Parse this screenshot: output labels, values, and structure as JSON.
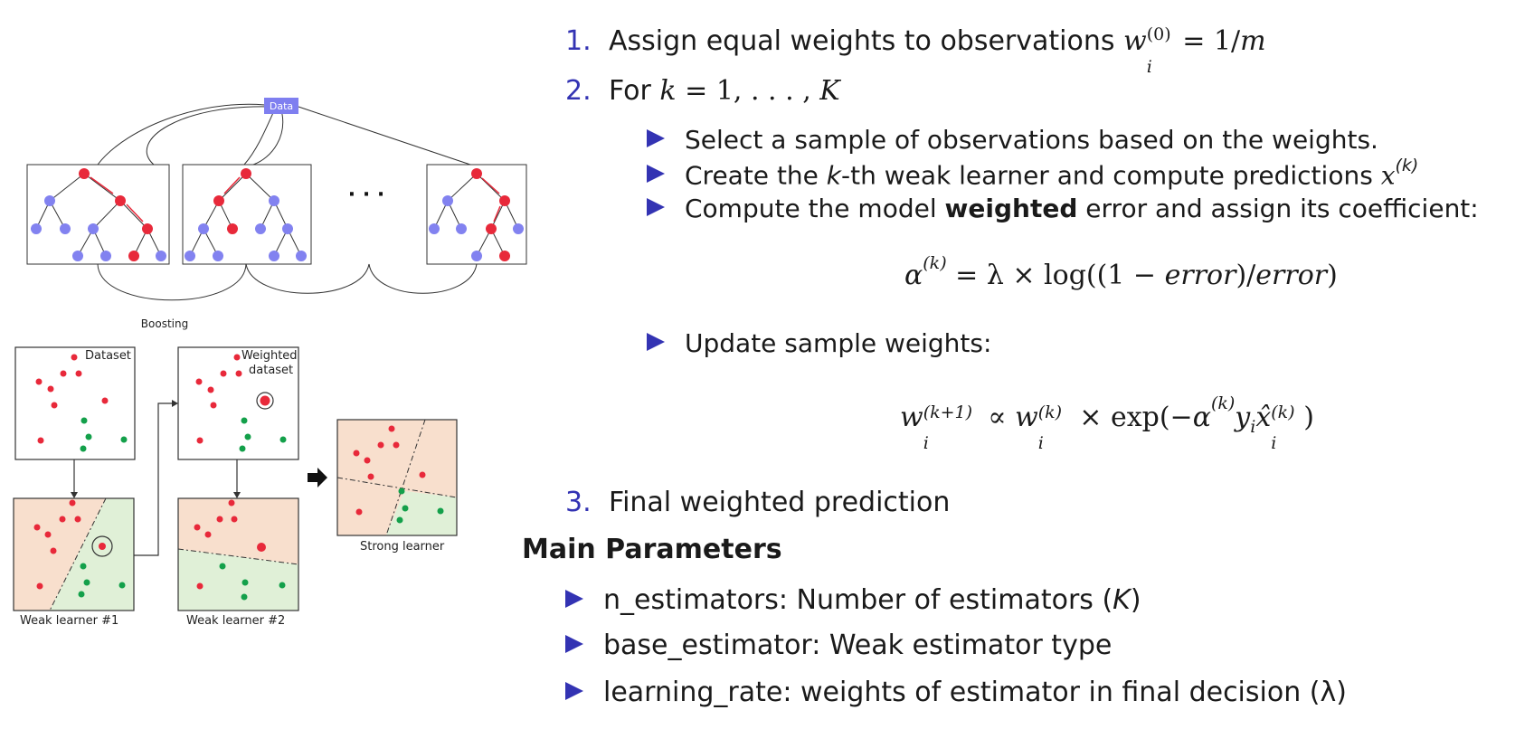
{
  "figure": {
    "data_label": "Data",
    "boosting_label": "Boosting",
    "dataset_label": "Dataset",
    "weighted_dataset_line1": "Weighted",
    "weighted_dataset_line2": "dataset",
    "weak_learner_1": "Weak learner #1",
    "weak_learner_2": "Weak learner #2",
    "strong_learner": "Strong learner",
    "ellipsis": "· · ·",
    "colors": {
      "tree_node": "#8282f0",
      "highlight": "#e8293a",
      "data_box": "#7f7ff0",
      "green": "#13a04a",
      "region_orange": "#f8dfcd",
      "region_green": "#e0f0d7"
    }
  },
  "steps": {
    "s1_num": "1.",
    "s1_text": "Assign equal weights to observations",
    "s2_num": "2.",
    "s2_text": "For",
    "s3_num": "3.",
    "s3_text": "Final weighted prediction"
  },
  "bullets": {
    "b1": "Select a sample of observations based on the weights.",
    "b2_pre": "Create the",
    "b2_k": "k",
    "b2_post": "-th weak learner and compute predictions",
    "b3_pre": "Compute the model",
    "b3_bold": "weighted",
    "b3_post": "error and assign its coefficient:",
    "b4": "Update sample weights:"
  },
  "math": {
    "w": "w",
    "i": "i",
    "sup0": "(0)",
    "eq_rhs": " = 1/",
    "m": "m",
    "for_k": "k",
    "for_range": " = 1, . . . , ",
    "K": "K",
    "x": "x",
    "supk": "(k)",
    "alpha": "α",
    "eq2_mid": " = λ × log((1 − ",
    "error": "error",
    "slash": ")/",
    "close": ")",
    "supk1": "(k+1)",
    "propto": " ∝ ",
    "times_exp": " × exp(−",
    "y": "y",
    "xhat": "x̂",
    "rparen": ")"
  },
  "params": {
    "heading": "Main Parameters",
    "p1_text": "n_estimators: Number of estimators (",
    "p1_var": "K",
    "p1_end": ")",
    "p2_text": "base_estimator: Weak estimator type",
    "p3_text": "learning_rate: weights of estimator in final decision (λ)"
  }
}
